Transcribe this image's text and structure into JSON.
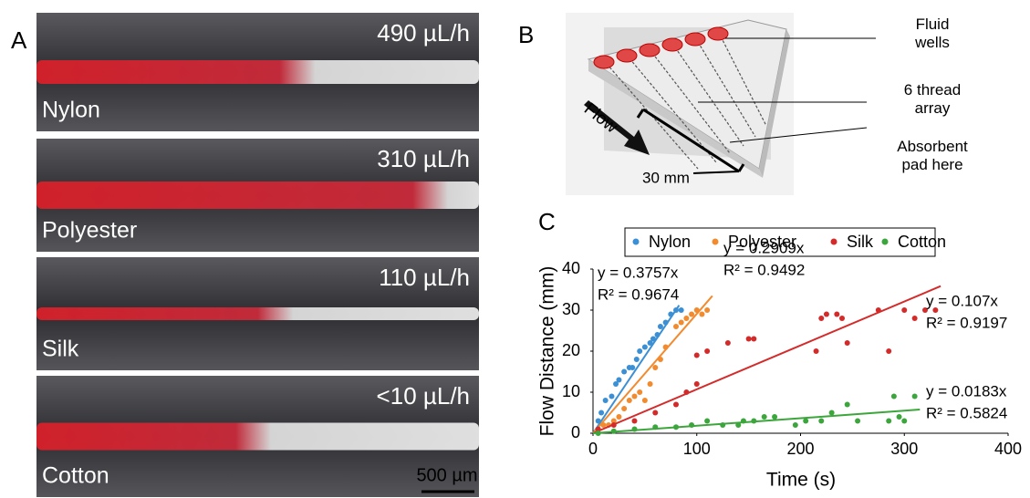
{
  "panel_a": {
    "label": "A",
    "scale_bar": "500 µm",
    "strips": [
      {
        "material": "Nylon",
        "rate": "490 µL/h"
      },
      {
        "material": "Polyester",
        "rate": "310 µL/h"
      },
      {
        "material": "Silk",
        "rate": "110 µL/h"
      },
      {
        "material": "Cotton",
        "rate": "<10 µL/h"
      }
    ]
  },
  "panel_b": {
    "label": "B",
    "wells": "Fluid\nwells",
    "array": "6 thread\narray",
    "pad": "Absorbent\npad here",
    "flow": "Flow",
    "length": "30 mm"
  },
  "chart_data": {
    "type": "scatter",
    "label": "C",
    "xlabel": "Time (s)",
    "ylabel": "Flow Distance (mm)",
    "xlim": [
      0,
      400
    ],
    "ylim": [
      0,
      40
    ],
    "xticks": [
      0,
      100,
      200,
      300,
      400
    ],
    "yticks": [
      0,
      10,
      20,
      30,
      40
    ],
    "series": [
      {
        "name": "Nylon",
        "color": "#3b8fd4",
        "x": [
          5,
          8,
          12,
          18,
          22,
          25,
          30,
          35,
          38,
          42,
          45,
          50,
          55,
          58,
          62,
          65,
          70,
          75,
          80,
          85
        ],
        "values": [
          3,
          5,
          8,
          9,
          12,
          13,
          15,
          16,
          16,
          18,
          20,
          21,
          22,
          23,
          24,
          26,
          27,
          29,
          30,
          30
        ],
        "trend": {
          "slope": 0.3757,
          "xmax": 83,
          "equation": "y = 0.3757x",
          "r2": "R² = 0.9674"
        }
      },
      {
        "name": "Polyester",
        "color": "#f28a2e",
        "x": [
          10,
          15,
          20,
          25,
          30,
          35,
          40,
          45,
          50,
          55,
          60,
          65,
          70,
          80,
          85,
          90,
          95,
          100,
          105,
          110
        ],
        "values": [
          2,
          2,
          3,
          4,
          6,
          8,
          9,
          10,
          8,
          12,
          16,
          18,
          21,
          26,
          27,
          28,
          29,
          30,
          29,
          30
        ],
        "trend": {
          "slope": 0.2909,
          "xmax": 115,
          "equation": "y = 0.2909x",
          "r2": "R² = 0.9492"
        }
      },
      {
        "name": "Silk",
        "color": "#d42a2a",
        "x": [
          5,
          20,
          40,
          60,
          80,
          90,
          100,
          100,
          110,
          130,
          150,
          155,
          215,
          220,
          225,
          235,
          240,
          245,
          275,
          285,
          300,
          310,
          320,
          330
        ],
        "values": [
          1,
          2,
          3,
          5,
          7,
          10,
          12,
          19,
          20,
          22,
          23,
          23,
          20,
          28,
          29,
          29,
          28,
          22,
          30,
          20,
          30,
          28,
          30,
          30
        ],
        "trend": {
          "slope": 0.107,
          "xmax": 335,
          "equation": "y = 0.107x",
          "r2": "R² = 0.9197"
        }
      },
      {
        "name": "Cotton",
        "color": "#3ca63c",
        "x": [
          5,
          20,
          40,
          60,
          80,
          95,
          110,
          125,
          140,
          145,
          155,
          165,
          175,
          195,
          205,
          220,
          230,
          245,
          255,
          285,
          290,
          295,
          300,
          310
        ],
        "values": [
          0,
          0.5,
          1,
          1.5,
          1.5,
          2,
          3,
          2,
          2,
          3,
          3,
          4,
          4,
          2,
          3,
          3,
          5,
          7,
          3,
          3,
          9,
          4,
          3,
          9
        ],
        "trend": {
          "slope": 0.0183,
          "xmax": 315,
          "equation": "y = 0.0183x",
          "r2": "R² = 0.5824"
        }
      }
    ]
  }
}
